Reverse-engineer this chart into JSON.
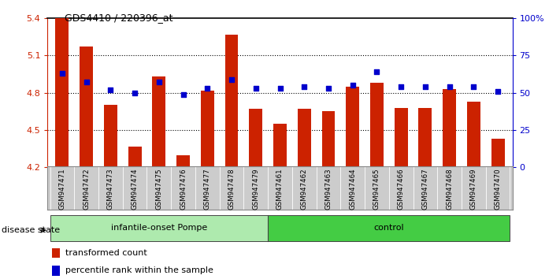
{
  "title": "GDS4410 / 220396_at",
  "samples": [
    "GSM947471",
    "GSM947472",
    "GSM947473",
    "GSM947474",
    "GSM947475",
    "GSM947476",
    "GSM947477",
    "GSM947478",
    "GSM947479",
    "GSM947461",
    "GSM947462",
    "GSM947463",
    "GSM947464",
    "GSM947465",
    "GSM947466",
    "GSM947467",
    "GSM947468",
    "GSM947469",
    "GSM947470"
  ],
  "transformed_count": [
    5.4,
    5.17,
    4.7,
    4.37,
    4.93,
    4.3,
    4.82,
    5.27,
    4.67,
    4.55,
    4.67,
    4.65,
    4.85,
    4.88,
    4.68,
    4.68,
    4.83,
    4.73,
    4.43
  ],
  "percentile_rank": [
    63,
    57,
    52,
    50,
    57,
    49,
    53,
    59,
    53,
    53,
    54,
    53,
    55,
    64,
    54,
    54,
    54,
    54,
    51
  ],
  "groups": [
    {
      "label": "infantile-onset Pompe",
      "start": 0,
      "end": 9
    },
    {
      "label": "control",
      "start": 9,
      "end": 19
    }
  ],
  "group_colors": [
    "#aeeaae",
    "#44cc44"
  ],
  "ylim_left": [
    4.2,
    5.4
  ],
  "ylim_right": [
    0,
    100
  ],
  "yticks_left": [
    4.2,
    4.5,
    4.8,
    5.1,
    5.4
  ],
  "yticks_right": [
    0,
    25,
    50,
    75,
    100
  ],
  "bar_color": "#cc2200",
  "dot_color": "#0000cc",
  "bg_color": "#ffffff",
  "bar_width": 0.55,
  "legend_items": [
    {
      "label": "transformed count",
      "color": "#cc2200"
    },
    {
      "label": "percentile rank within the sample",
      "color": "#0000cc"
    }
  ],
  "disease_state_label": "disease state",
  "hgrid_vals": [
    4.5,
    4.8,
    5.1
  ]
}
